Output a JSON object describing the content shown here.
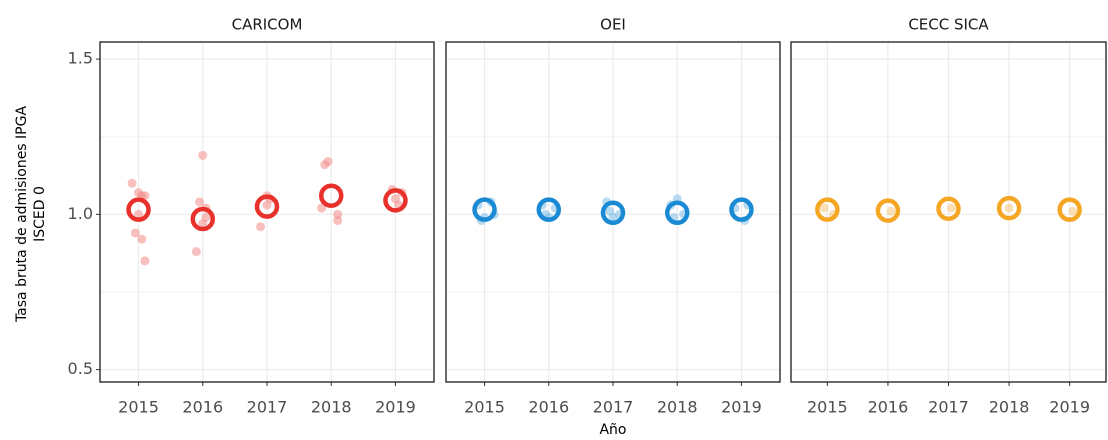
{
  "chart_data": [
    {
      "type": "scatter",
      "title": "CARICOM",
      "y_label": [
        "Tasa bruta de admisiones IPGA",
        "ISCED 0"
      ],
      "xlim": [
        2014.4,
        2019.6
      ],
      "xticks": [
        2015,
        2016,
        2017,
        2018,
        2019
      ],
      "ylim": [
        0.46,
        1.555
      ],
      "yticks": [
        0.5,
        {
          "value": 1,
          "label": "1.0"
        },
        1.5
      ],
      "yminor": [
        0.75,
        1.25
      ],
      "grid": true,
      "points": {
        "color": "#f08a86",
        "x": [
          2014.9,
          2015.0,
          2015.05,
          2015.1,
          2014.95,
          2015.05,
          2015.1,
          2015.0,
          2016.0,
          2015.9,
          2015.95,
          2016.05,
          2016.0,
          2016.05,
          2016.9,
          2017.0,
          2017.05,
          2017.0,
          2017.9,
          2017.95,
          2018.1,
          2018.1,
          2017.85,
          2018.95,
          2019.1,
          2019.05,
          2019.0
        ],
        "y": [
          1.1,
          1.07,
          1.06,
          1.06,
          0.94,
          0.92,
          0.85,
          1.0,
          1.19,
          0.88,
          1.04,
          1.02,
          0.97,
          0.99,
          0.96,
          1.06,
          1.05,
          1.03,
          1.16,
          1.17,
          1.0,
          0.98,
          1.02,
          1.08,
          1.07,
          1.03,
          1.05
        ]
      },
      "means": {
        "color": "#e8312b",
        "x": [
          2015,
          2016,
          2017,
          2018,
          2019
        ],
        "y": [
          1.015,
          0.985,
          1.025,
          1.06,
          1.045
        ]
      }
    },
    {
      "type": "scatter",
      "title": "OEI",
      "x_label": "Año",
      "xlim": [
        2014.4,
        2019.6
      ],
      "xticks": [
        2015,
        2016,
        2017,
        2018,
        2019
      ],
      "ylim": [
        0.46,
        1.555
      ],
      "yticks": [
        0.5,
        {
          "value": 1,
          "label": "1.0"
        },
        1.5
      ],
      "yminor": [
        0.75,
        1.25
      ],
      "grid": true,
      "points": {
        "color": "#7fbde8",
        "x": [
          2014.9,
          2015.1,
          2015.0,
          2014.95,
          2015.15,
          2015.9,
          2016.1,
          2016.0,
          2015.95,
          2016.9,
          2017.1,
          2017.0,
          2016.95,
          2017.9,
          2018.1,
          2018.0,
          2017.95,
          2018.9,
          2019.1,
          2019.05
        ],
        "y": [
          1.03,
          1.04,
          0.99,
          0.98,
          1.0,
          1.03,
          1.02,
          0.99,
          1.0,
          1.04,
          1.0,
          0.99,
          1.01,
          1.03,
          1.0,
          1.05,
          0.99,
          1.02,
          1.03,
          0.98
        ]
      },
      "means": {
        "color": "#1a8ad4",
        "x": [
          2015,
          2016,
          2017,
          2018,
          2019
        ],
        "y": [
          1.015,
          1.015,
          1.005,
          1.005,
          1.015
        ]
      }
    },
    {
      "type": "scatter",
      "title": "CECC SICA",
      "xlim": [
        2014.4,
        2019.6
      ],
      "xticks": [
        2015,
        2016,
        2017,
        2018,
        2019
      ],
      "ylim": [
        0.46,
        1.555
      ],
      "yticks": [
        0.5,
        {
          "value": 1,
          "label": "1.0"
        },
        1.5
      ],
      "yminor": [
        0.75,
        1.25
      ],
      "grid": true,
      "points": {
        "color": "#f8c77a",
        "x": [
          2015.1,
          2014.95,
          2016.05,
          2017.05,
          2018.0,
          2019.05
        ],
        "y": [
          1.0,
          1.02,
          1.01,
          1.02,
          1.02,
          1.01
        ]
      },
      "means": {
        "color": "#f5a623",
        "x": [
          2015,
          2016,
          2017,
          2018,
          2019
        ],
        "y": [
          1.015,
          1.012,
          1.018,
          1.02,
          1.015
        ]
      }
    }
  ]
}
